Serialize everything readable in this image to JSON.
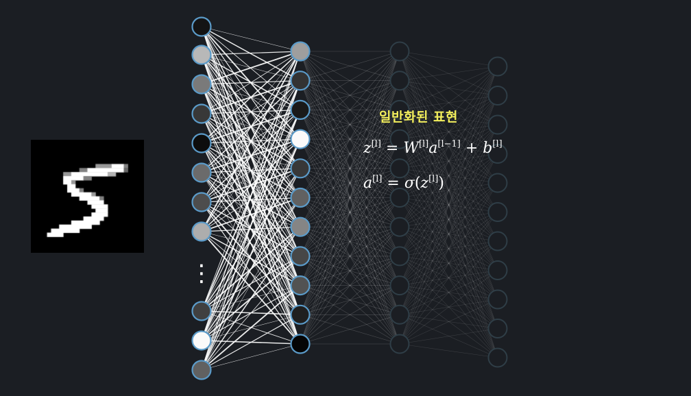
{
  "title": "일반화된 표현",
  "equations": {
    "eq1": {
      "z": "z",
      "z_sup": "[l]",
      "eq": " = ",
      "W": "W",
      "W_sup": "[l]",
      "a": "a",
      "a_sup": "[l−1]",
      "plus": " + ",
      "b": "b",
      "b_sup": "[l]"
    },
    "eq2": {
      "a": "a",
      "a_sup": "[l]",
      "eq": " = ",
      "sigma": "σ",
      "open": "(",
      "z": "z",
      "z_sup": "[l]",
      "close": ")"
    }
  },
  "network": {
    "input_layer": {
      "top_activations": [
        0.08,
        0.72,
        0.48,
        0.22,
        0.05,
        0.42,
        0.3,
        0.68
      ],
      "bottom_activations": [
        0.25,
        0.98,
        0.38
      ],
      "ellipsis": "⋮"
    },
    "hidden_layer_1": {
      "activations": [
        0.62,
        0.2,
        0.1,
        0.98,
        0.22,
        0.38,
        0.52,
        0.28,
        0.32,
        0.12,
        0.02
      ]
    },
    "hidden_layer_2": {
      "count": 11
    },
    "hidden_layer_3": {
      "count": 11
    },
    "colors": {
      "node_border_active": "#5b9bc9",
      "node_border_faded": "#2f3e47",
      "background": "#1b1e23",
      "title": "#f3ef5c"
    }
  },
  "digit_image": {
    "label": "5"
  }
}
